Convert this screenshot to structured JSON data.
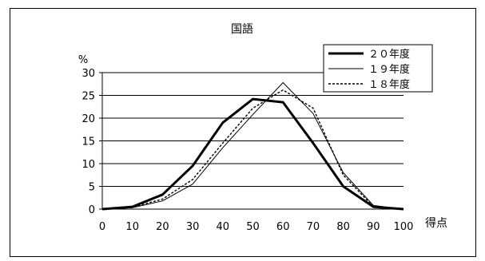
{
  "chart_data": {
    "type": "line",
    "title": "国語",
    "ylabel": "%",
    "xlabel": "得点",
    "x": [
      0,
      10,
      20,
      30,
      40,
      50,
      60,
      70,
      80,
      90,
      100
    ],
    "ylim": [
      0,
      30
    ],
    "yticks": [
      0,
      5,
      10,
      15,
      20,
      25,
      30
    ],
    "grid": true,
    "legend": "top-right",
    "series": [
      {
        "name": "２０年度",
        "style": "bold",
        "values": [
          0,
          0.5,
          3.2,
          9.5,
          19,
          24.2,
          23.5,
          14.5,
          5,
          0.5,
          0
        ]
      },
      {
        "name": "１９年度",
        "style": "thin",
        "values": [
          0,
          0.3,
          1.8,
          5.5,
          13.5,
          20.8,
          27.8,
          21,
          8,
          0.8,
          0
        ]
      },
      {
        "name": "１８年度",
        "style": "dotted",
        "values": [
          0,
          0.4,
          2.2,
          6.5,
          14.5,
          22.2,
          26.2,
          22.2,
          7.5,
          0.5,
          0
        ]
      }
    ]
  }
}
